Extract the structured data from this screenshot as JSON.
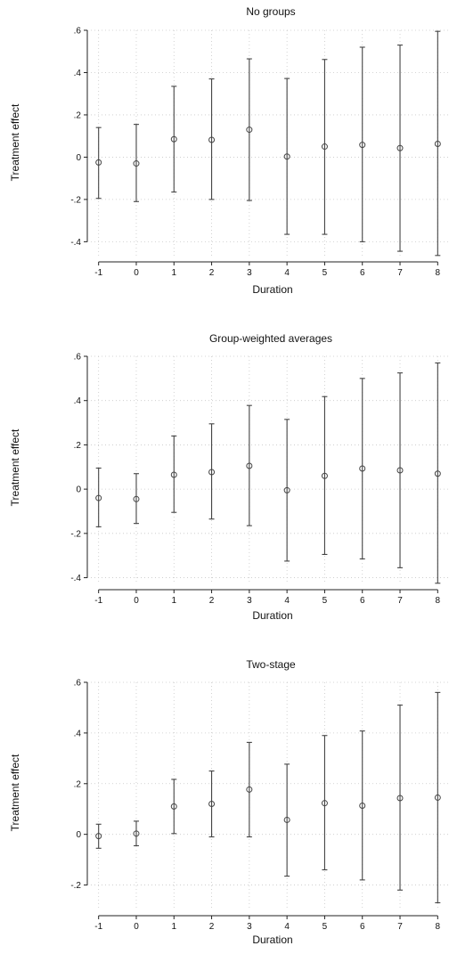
{
  "chart_data": [
    {
      "type": "scatter",
      "title": "No groups",
      "xlabel": "Duration",
      "ylabel": "Treatment effect",
      "x": [
        -1,
        0,
        1,
        2,
        3,
        4,
        5,
        6,
        7,
        8
      ],
      "x_tick_labels": [
        "-1",
        "0",
        "1",
        "2",
        "3",
        "4",
        "5",
        "6",
        "7",
        "8"
      ],
      "y_ticks": [
        -0.4,
        -0.2,
        0,
        0.2,
        0.4,
        0.6
      ],
      "y_tick_labels": [
        "-.4",
        "-.2",
        "0",
        ".2",
        ".4",
        ".6"
      ],
      "ylim": [
        -0.47,
        0.6
      ],
      "xlim": [
        -1.3,
        8.3
      ],
      "grid": true,
      "series": [
        {
          "values": [
            -0.025,
            -0.03,
            0.085,
            0.082,
            0.13,
            0.003,
            0.05,
            0.058,
            0.043,
            0.063
          ],
          "ci_lower": [
            -0.195,
            -0.21,
            -0.165,
            -0.2,
            -0.205,
            -0.365,
            -0.365,
            -0.4,
            -0.445,
            -0.465
          ],
          "ci_upper": [
            0.14,
            0.155,
            0.335,
            0.37,
            0.465,
            0.372,
            0.462,
            0.52,
            0.53,
            0.595
          ]
        }
      ]
    },
    {
      "type": "scatter",
      "title": "Group-weighted averages",
      "xlabel": "Duration",
      "ylabel": "Treatment effect",
      "x": [
        -1,
        0,
        1,
        2,
        3,
        4,
        5,
        6,
        7,
        8
      ],
      "x_tick_labels": [
        "-1",
        "0",
        "1",
        "2",
        "3",
        "4",
        "5",
        "6",
        "7",
        "8"
      ],
      "y_ticks": [
        -0.4,
        -0.2,
        0,
        0.2,
        0.4,
        0.6
      ],
      "y_tick_labels": [
        "-.4",
        "-.2",
        "0",
        ".2",
        ".4",
        ".6"
      ],
      "ylim": [
        -0.43,
        0.6
      ],
      "xlim": [
        -1.3,
        8.3
      ],
      "grid": true,
      "series": [
        {
          "values": [
            -0.04,
            -0.045,
            0.065,
            0.077,
            0.105,
            -0.005,
            0.06,
            0.093,
            0.085,
            0.07
          ],
          "ci_lower": [
            -0.17,
            -0.155,
            -0.105,
            -0.135,
            -0.165,
            -0.325,
            -0.295,
            -0.315,
            -0.355,
            -0.425
          ],
          "ci_upper": [
            0.095,
            0.07,
            0.24,
            0.295,
            0.378,
            0.315,
            0.418,
            0.5,
            0.525,
            0.57
          ]
        }
      ]
    },
    {
      "type": "scatter",
      "title": "Two-stage",
      "xlabel": "Duration",
      "ylabel": "Treatment effect",
      "x": [
        -1,
        0,
        1,
        2,
        3,
        4,
        5,
        6,
        7,
        8
      ],
      "x_tick_labels": [
        "-1",
        "0",
        "1",
        "2",
        "3",
        "4",
        "5",
        "6",
        "7",
        "8"
      ],
      "y_ticks": [
        -0.2,
        0,
        0.2,
        0.4,
        0.6
      ],
      "y_tick_labels": [
        "-.2",
        "0",
        ".2",
        ".4",
        ".6"
      ],
      "ylim": [
        -0.3,
        0.6
      ],
      "xlim": [
        -1.3,
        8.3
      ],
      "grid": true,
      "series": [
        {
          "values": [
            -0.007,
            0.003,
            0.11,
            0.12,
            0.177,
            0.057,
            0.123,
            0.113,
            0.143,
            0.145
          ],
          "ci_lower": [
            -0.055,
            -0.045,
            0.003,
            -0.01,
            -0.01,
            -0.165,
            -0.14,
            -0.18,
            -0.22,
            -0.27
          ],
          "ci_upper": [
            0.04,
            0.052,
            0.217,
            0.25,
            0.363,
            0.277,
            0.39,
            0.408,
            0.51,
            0.56
          ]
        }
      ]
    }
  ]
}
